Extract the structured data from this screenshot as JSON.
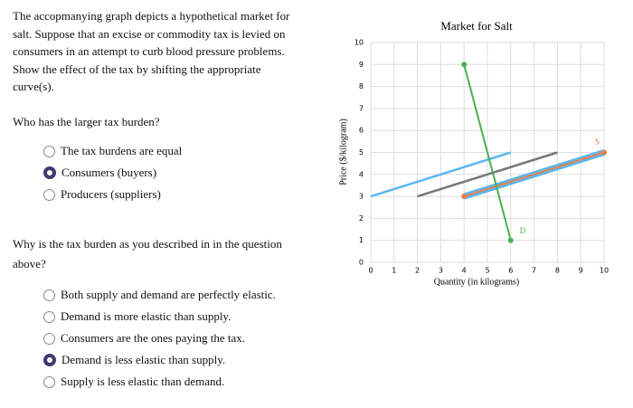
{
  "intro": "The accopmanying graph depicts a hypothetical market for salt. Suppose that an excise or commodity tax is levied on consumers in an attempt to curb blood pressure problems. Show the effect of the tax by shifting the appropriate curve(s).",
  "questions": [
    {
      "prompt": "Who has the larger tax burden?",
      "options": [
        "The tax burdens are equal",
        "Consumers (buyers)",
        "Producers (suppliers)"
      ],
      "selected": 1
    },
    {
      "prompt": "Why is the tax burden as you described in in the question above?",
      "options": [
        "Both supply and demand are perfectly elastic.",
        "Demand is more elastic than supply.",
        "Consumers are the ones paying the tax.",
        "Demand is less elastic than supply.",
        "Supply is less elastic than demand."
      ],
      "selected": 3
    }
  ],
  "chart_data": {
    "type": "line",
    "title": "Market for Salt",
    "x_label": "Quantity (in kilograms)",
    "y_label": "Price ($/kilogram)",
    "xlim": [
      0,
      10
    ],
    "ylim": [
      0,
      10
    ],
    "xticks": [
      0,
      1,
      2,
      3,
      4,
      5,
      6,
      7,
      8,
      9,
      10
    ],
    "yticks": [
      0,
      1,
      2,
      3,
      4,
      5,
      6,
      7,
      8,
      9,
      10
    ],
    "grid": true,
    "series": [
      {
        "name": "D",
        "color": "#4caf50",
        "x": [
          4,
          6
        ],
        "values": [
          9,
          1
        ]
      },
      {
        "name": "S",
        "color": "#e8804a",
        "highlight": "#5bb8f0",
        "x": [
          4,
          10
        ],
        "values": [
          3,
          5
        ]
      },
      {
        "color": "#5bb8f0",
        "x": [
          0,
          6
        ],
        "values": [
          3,
          5
        ]
      },
      {
        "color": "#777777",
        "x": [
          2,
          8
        ],
        "values": [
          3,
          5
        ]
      }
    ]
  }
}
